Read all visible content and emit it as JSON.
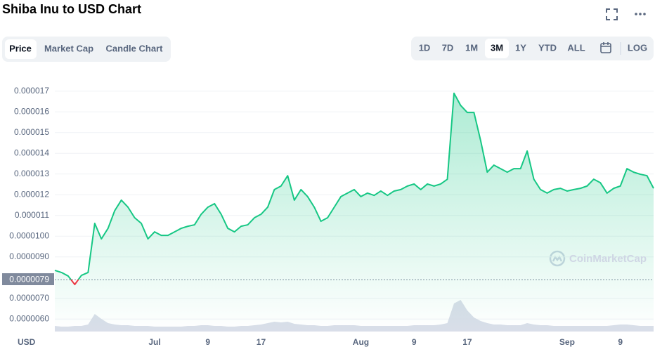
{
  "ui": {
    "tabs": [
      "Price",
      "Market Cap",
      "Candle Chart"
    ],
    "ranges": [
      "1D",
      "7D",
      "1M",
      "3M",
      "1Y",
      "YTD",
      "ALL"
    ],
    "log": "LOG"
  },
  "chart_data": {
    "type": "line",
    "title": "Shiba Inu to USD Chart",
    "currency_label": "USD",
    "watermark": "CoinMarketCap",
    "color": "#16c784",
    "below_color": "#ea3943",
    "reference_line": 7.9e-06,
    "categories": [
      null,
      null,
      null,
      null,
      null,
      null,
      null,
      null,
      null,
      null,
      null,
      null,
      null,
      null,
      null,
      "Jul",
      null,
      null,
      null,
      null,
      null,
      null,
      null,
      "9",
      null,
      null,
      null,
      null,
      null,
      null,
      null,
      "17",
      null,
      null,
      null,
      null,
      null,
      null,
      null,
      null,
      null,
      null,
      null,
      null,
      null,
      null,
      "Aug",
      null,
      null,
      null,
      null,
      null,
      null,
      null,
      "9",
      null,
      null,
      null,
      null,
      null,
      null,
      null,
      "17",
      null,
      null,
      null,
      null,
      null,
      null,
      null,
      null,
      null,
      null,
      null,
      null,
      null,
      null,
      "Sep",
      null,
      null,
      null,
      null,
      null,
      null,
      null,
      "9",
      null,
      null,
      null,
      null,
      null
    ],
    "values": [
      8.35e-06,
      8.25e-06,
      8.08e-06,
      7.67e-06,
      8.11e-06,
      8.25e-06,
      1.062e-05,
      9.87e-06,
      1.038e-05,
      1.123e-05,
      1.174e-05,
      1.14e-05,
      1.089e-05,
      1.062e-05,
      9.87e-06,
      1.021e-05,
      1.004e-05,
      1.004e-05,
      1.021e-05,
      1.038e-05,
      1.048e-05,
      1.055e-05,
      1.106e-05,
      1.14e-05,
      1.157e-05,
      1.106e-05,
      1.038e-05,
      1.021e-05,
      1.048e-05,
      1.055e-05,
      1.089e-05,
      1.106e-05,
      1.14e-05,
      1.225e-05,
      1.242e-05,
      1.292e-05,
      1.174e-05,
      1.225e-05,
      1.191e-05,
      1.14e-05,
      1.072e-05,
      1.089e-05,
      1.14e-05,
      1.191e-05,
      1.208e-05,
      1.225e-05,
      1.191e-05,
      1.208e-05,
      1.197e-05,
      1.218e-05,
      1.197e-05,
      1.218e-05,
      1.225e-05,
      1.242e-05,
      1.252e-05,
      1.225e-05,
      1.252e-05,
      1.242e-05,
      1.252e-05,
      1.275e-05,
      1.69e-05,
      1.631e-05,
      1.597e-05,
      1.597e-05,
      1.462e-05,
      1.309e-05,
      1.343e-05,
      1.326e-05,
      1.309e-05,
      1.326e-05,
      1.326e-05,
      1.411e-05,
      1.275e-05,
      1.225e-05,
      1.208e-05,
      1.225e-05,
      1.231e-05,
      1.218e-05,
      1.225e-05,
      1.231e-05,
      1.242e-05,
      1.275e-05,
      1.258e-05,
      1.208e-05,
      1.231e-05,
      1.242e-05,
      1.326e-05,
      1.309e-05,
      1.299e-05,
      1.292e-05,
      1.231e-05
    ],
    "volume": [
      8,
      7,
      7,
      8,
      8,
      10,
      25,
      18,
      12,
      10,
      9,
      9,
      8,
      8,
      8,
      7,
      7,
      7,
      7,
      7,
      8,
      8,
      9,
      9,
      8,
      8,
      7,
      7,
      8,
      8,
      9,
      10,
      12,
      14,
      13,
      14,
      11,
      10,
      9,
      9,
      8,
      8,
      9,
      9,
      9,
      9,
      8,
      8,
      8,
      8,
      8,
      8,
      8,
      8,
      9,
      9,
      9,
      9,
      10,
      12,
      40,
      45,
      30,
      20,
      15,
      12,
      10,
      10,
      9,
      9,
      9,
      12,
      10,
      9,
      9,
      8,
      8,
      8,
      8,
      8,
      8,
      8,
      8,
      8,
      9,
      10,
      10,
      9,
      8,
      8,
      8
    ],
    "ylim": [
      5.4e-06,
      1.75e-05
    ],
    "yticks": [
      {
        "value": 6e-06,
        "label": "0.0000060"
      },
      {
        "value": 7e-06,
        "label": "0.0000070"
      },
      {
        "value": 9e-06,
        "label": "0.0000090"
      },
      {
        "value": 1e-05,
        "label": "0.0000100"
      },
      1.1e-05,
      1.2e-05,
      1.3e-05,
      1.4e-05,
      1.5e-05,
      1.6e-05,
      1.7e-05
    ],
    "grid": true
  }
}
